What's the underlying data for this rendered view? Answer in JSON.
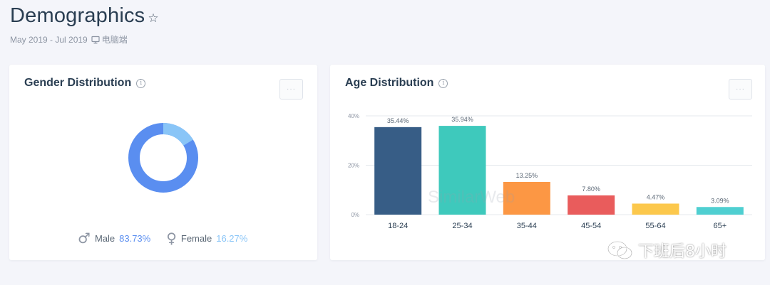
{
  "page": {
    "title": "Demographics",
    "date_range": "May 2019 - Jul 2019",
    "device_label": "电脑端"
  },
  "gender_card": {
    "title": "Gender Distribution",
    "info_glyph": "i",
    "more_label": "···",
    "male_symbol": "♂",
    "male_label": "Male",
    "male_value": "83.73%",
    "female_symbol": "♀",
    "female_label": "Female",
    "female_value": "16.27%",
    "male_share": 83.73,
    "female_share": 16.27,
    "colors": {
      "male": "#5a8ef0",
      "female": "#89c5f7"
    }
  },
  "age_card": {
    "title": "Age Distribution",
    "info_glyph": "i",
    "more_label": "···",
    "watermark": "SimilarWeb"
  },
  "chart_data": {
    "type": "bar",
    "categories": [
      "18-24",
      "25-34",
      "35-44",
      "45-54",
      "55-64",
      "65+"
    ],
    "values": [
      35.44,
      35.94,
      13.25,
      7.8,
      4.47,
      3.09
    ],
    "data_labels": [
      "35.44%",
      "35.94%",
      "13.25%",
      "7.80%",
      "4.47%",
      "3.09%"
    ],
    "colors": [
      "#375d86",
      "#3ec9bc",
      "#fc9744",
      "#e95c5c",
      "#fcc84c",
      "#4fcfd1"
    ],
    "yticks": [
      "0%",
      "20%",
      "40%"
    ],
    "ytick_values": [
      0,
      20,
      40
    ],
    "ylim": [
      0,
      40
    ],
    "grid": true,
    "title": "",
    "xlabel": "",
    "ylabel": ""
  },
  "watermark": {
    "text": "下班后8小时"
  }
}
